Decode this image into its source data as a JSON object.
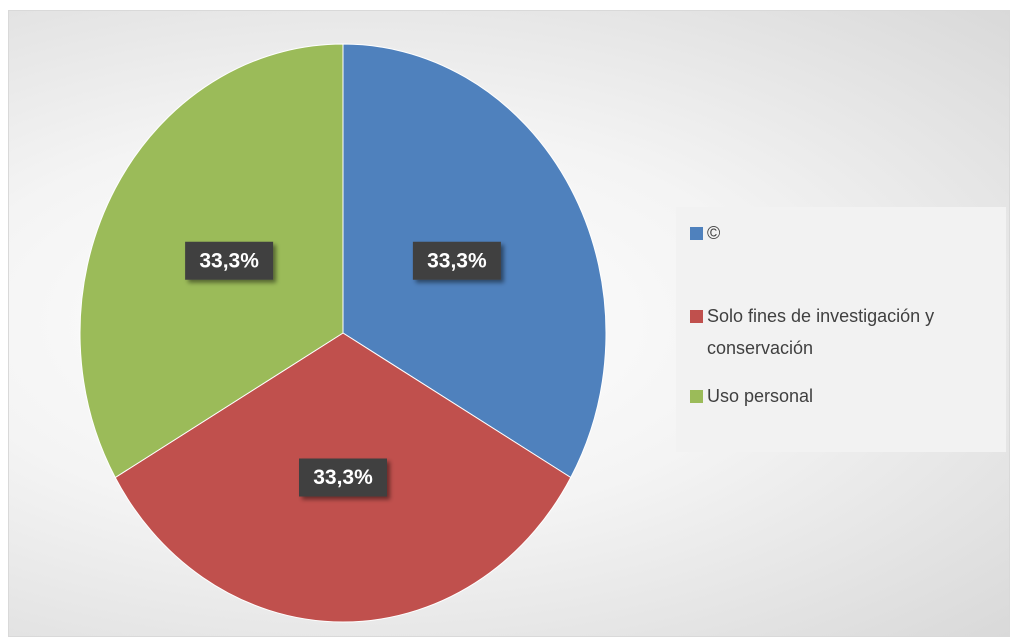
{
  "chart_data": {
    "type": "pie",
    "categories": [
      "©",
      "Solo fines de investigación y conservación",
      "Uso personal"
    ],
    "values": [
      33.3,
      33.3,
      33.3
    ],
    "value_labels": [
      "33,3%",
      "33,3%",
      "33,3%"
    ],
    "colors": [
      "#4f81bd",
      "#c0504d",
      "#9bbb59"
    ],
    "legend": "right"
  }
}
